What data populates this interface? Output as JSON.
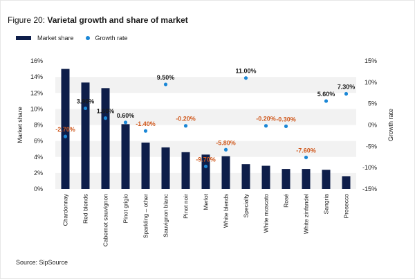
{
  "title_prefix": "Figure 20: ",
  "title_main": "Varietal growth and share of market",
  "legend": {
    "bar": "Market share",
    "dot": "Growth rate"
  },
  "source": "Source: SipSource",
  "colors": {
    "bar": "#0e1e4a",
    "dot": "#1b87d6",
    "positive_label": "#1a1a1a",
    "negative_label": "#d0581c",
    "band": "#f2f2f2"
  },
  "chart_data": {
    "type": "bar",
    "categories": [
      "Chardonnay",
      "Red blends",
      "Cabernet sauvignon",
      "Pinot grigio",
      "Sparkling – other",
      "Sauvignon blanc",
      "Pinot noir",
      "Merlot",
      "White blends",
      "Specialty",
      "White moscato",
      "Rosé",
      "White zinfandel",
      "Sangria",
      "Prosecco"
    ],
    "series": [
      {
        "name": "Market share",
        "axis": "left",
        "values": [
          15.0,
          13.3,
          12.6,
          8.1,
          5.8,
          5.2,
          4.6,
          4.3,
          4.1,
          3.1,
          2.9,
          2.5,
          2.5,
          2.4,
          1.6
        ]
      },
      {
        "name": "Growth rate",
        "axis": "right",
        "values": [
          -2.7,
          3.9,
          1.6,
          0.6,
          -1.4,
          9.5,
          -0.2,
          -9.7,
          -5.8,
          11.0,
          -0.2,
          -0.3,
          -7.6,
          5.6,
          7.3
        ],
        "labels": [
          "-2.70%",
          "3.90%",
          "1.60%",
          "0.60%",
          "-1.40%",
          "9.50%",
          "-0.20%",
          "-9.70%",
          "-5.80%",
          "11.00%",
          "-0.20%",
          "-0.30%",
          "-7.60%",
          "5.60%",
          "7.30%"
        ]
      }
    ],
    "ylabel": "Market share",
    "y2label": "Growth rate",
    "ylim": [
      0,
      16
    ],
    "y2lim": [
      -15,
      15
    ],
    "yticks": [
      "0%",
      "2%",
      "4%",
      "6%",
      "8%",
      "10%",
      "12%",
      "14%",
      "16%"
    ],
    "y2ticks": [
      "-15%",
      "-10%",
      "-5%",
      "0%",
      "5%",
      "10%",
      "15%"
    ],
    "grid": "alternating horizontal bands",
    "legend_position": "top-left"
  }
}
